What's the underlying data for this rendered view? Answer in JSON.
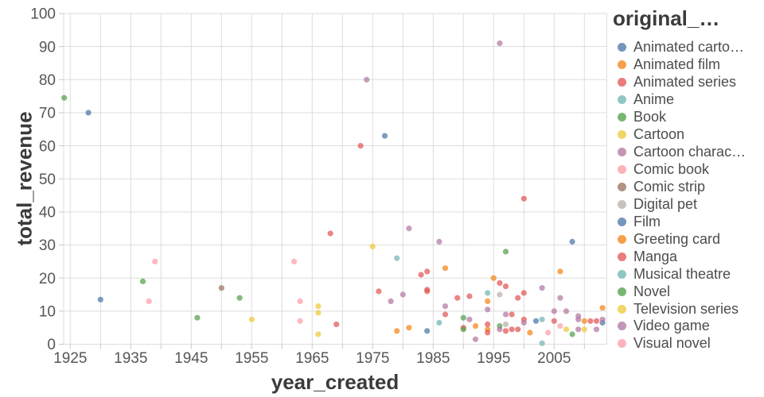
{
  "chart_data": {
    "type": "scatter",
    "xlabel": "year_created",
    "ylabel": "total_revenue",
    "legend_title": "original_…",
    "xlim": [
      1923.9,
      2013.8
    ],
    "ylim": [
      0,
      100
    ],
    "x_tick_years": [
      1925,
      1935,
      1945,
      1955,
      1965,
      1975,
      1985,
      1995,
      2005
    ],
    "x_grid_step": 5,
    "y_tick_step": 10,
    "grid": true,
    "legend_position": "right",
    "grid_color": "#dddddd",
    "tick_mark_color": "#c9c9c9",
    "tick_label_color": "#565656",
    "title_color": "#3b3b3b",
    "point_opacity": 0.73,
    "series": [
      {
        "name": "Animated carto…",
        "color": "#4c78a8",
        "points": [
          [
            1928,
            70
          ],
          [
            1930,
            13.5
          ]
        ]
      },
      {
        "name": "Animated film",
        "color": "#f58518",
        "points": [
          [
            1987,
            23
          ],
          [
            1994,
            13
          ],
          [
            1995,
            20
          ],
          [
            2006,
            22
          ],
          [
            2010,
            7
          ],
          [
            2013,
            11
          ]
        ]
      },
      {
        "name": "Animated series",
        "color": "#e45756",
        "points": [
          [
            1968,
            33.5
          ],
          [
            1969,
            6
          ],
          [
            1976,
            16
          ],
          [
            1983,
            21
          ],
          [
            1984,
            22
          ],
          [
            1987,
            9
          ],
          [
            1989,
            14
          ],
          [
            1990,
            5
          ],
          [
            1996,
            18.5
          ],
          [
            1998,
            9
          ],
          [
            1998,
            4.5
          ],
          [
            2000,
            15.5
          ],
          [
            2005,
            7
          ],
          [
            2011,
            7
          ],
          [
            2012,
            7
          ]
        ]
      },
      {
        "name": "Anime",
        "color": "#72b7b2",
        "points": [
          [
            1979,
            26
          ],
          [
            1986,
            6.5
          ],
          [
            2003,
            7.5
          ]
        ]
      },
      {
        "name": "Book",
        "color": "#54a24b",
        "points": [
          [
            1924,
            74.5
          ],
          [
            1937,
            19
          ],
          [
            1946,
            8
          ],
          [
            1953,
            14
          ],
          [
            1990,
            8
          ]
        ]
      },
      {
        "name": "Cartoon",
        "color": "#eeca3b",
        "points": [
          [
            1955,
            7.5
          ],
          [
            1966,
            3
          ],
          [
            2007,
            4.5
          ]
        ]
      },
      {
        "name": "Cartoon charac…",
        "color": "#b279a2",
        "points": [
          [
            1974,
            80
          ],
          [
            2003,
            17
          ],
          [
            2006,
            14
          ],
          [
            2009,
            8.5
          ]
        ]
      },
      {
        "name": "Comic book",
        "color": "#ff9da6",
        "points": [
          [
            1938,
            13
          ],
          [
            1939,
            25
          ],
          [
            1962,
            25
          ],
          [
            1963,
            13
          ],
          [
            1963,
            7
          ]
        ]
      },
      {
        "name": "Comic strip",
        "color": "#9d755d",
        "points": [
          [
            1950,
            17
          ]
        ]
      },
      {
        "name": "Digital pet",
        "color": "#bab0ac",
        "points": [
          [
            1996,
            15
          ],
          [
            1997,
            6
          ]
        ]
      },
      {
        "name": "Film",
        "color": "#4c78a8",
        "points": [
          [
            1977,
            63
          ],
          [
            1984,
            4
          ],
          [
            2002,
            7
          ],
          [
            2008,
            31
          ],
          [
            2013,
            6.5
          ]
        ]
      },
      {
        "name": "Greeting card",
        "color": "#f58518",
        "points": [
          [
            1979,
            4
          ],
          [
            1981,
            5
          ],
          [
            1992,
            5.5
          ],
          [
            1994,
            4.5
          ],
          [
            2001,
            3.5
          ]
        ]
      },
      {
        "name": "Manga",
        "color": "#e45756",
        "points": [
          [
            1973,
            60
          ],
          [
            1984,
            16.5
          ],
          [
            1984,
            16
          ],
          [
            1991,
            14.5
          ],
          [
            1994,
            6
          ],
          [
            1994,
            3.5
          ],
          [
            1997,
            17.5
          ],
          [
            1997,
            4
          ],
          [
            1999,
            14
          ],
          [
            1999,
            4.5
          ],
          [
            2000,
            44
          ],
          [
            2000,
            7.5
          ]
        ]
      },
      {
        "name": "Musical theatre",
        "color": "#72b7b2",
        "points": [
          [
            1994,
            15.5
          ],
          [
            2003,
            0.3
          ]
        ]
      },
      {
        "name": "Novel",
        "color": "#54a24b",
        "points": [
          [
            1990,
            4.5
          ],
          [
            1996,
            5.5
          ],
          [
            1997,
            28
          ],
          [
            2008,
            3
          ]
        ]
      },
      {
        "name": "Television series",
        "color": "#eeca3b",
        "points": [
          [
            1966,
            11.5
          ],
          [
            1966,
            9.5
          ],
          [
            1975,
            29.5
          ],
          [
            2010,
            4.5
          ]
        ]
      },
      {
        "name": "Video game",
        "color": "#b279a2",
        "points": [
          [
            1978,
            13
          ],
          [
            1980,
            15
          ],
          [
            1981,
            35
          ],
          [
            1986,
            31
          ],
          [
            1987,
            11.5
          ],
          [
            1991,
            7.5
          ],
          [
            1992,
            1.5
          ],
          [
            1994,
            10.5
          ],
          [
            1996,
            91
          ],
          [
            1996,
            4.5
          ],
          [
            1997,
            9
          ],
          [
            2000,
            6.5
          ],
          [
            2005,
            10
          ],
          [
            2007,
            10
          ],
          [
            2009,
            7.5
          ],
          [
            2009,
            4.5
          ],
          [
            2012,
            4.5
          ],
          [
            2013,
            7.5
          ]
        ]
      },
      {
        "name": "Visual novel",
        "color": "#ff9da6",
        "points": [
          [
            2004,
            3.5
          ],
          [
            2006,
            5.5
          ]
        ]
      }
    ]
  }
}
